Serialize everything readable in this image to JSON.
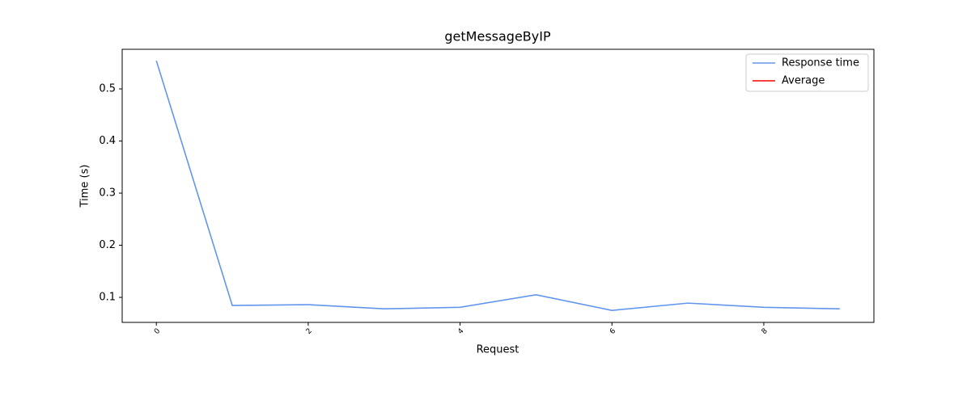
{
  "chart_data": {
    "type": "line",
    "title": "getMessageByIP",
    "x_label": "Request",
    "y_label": "Time (s)",
    "x": [
      0,
      1,
      2,
      3,
      4,
      5,
      6,
      7,
      8,
      9
    ],
    "series": [
      {
        "name": "Response time",
        "color": "#6495ed",
        "values": [
          0.554,
          0.0845,
          0.086,
          0.078,
          0.081,
          0.105,
          0.075,
          0.089,
          0.081,
          0.078
        ]
      },
      {
        "name": "Average",
        "color": "#ff0000",
        "values": [
          null,
          null,
          null,
          null,
          null,
          null,
          null,
          null,
          null,
          null
        ]
      }
    ],
    "xlim": [
      -0.45,
      9.45
    ],
    "xticks": [
      0,
      2,
      4,
      6,
      8
    ],
    "ylim": [
      0.052,
      0.576
    ],
    "yticks": [
      0.1,
      0.2,
      0.3,
      0.4,
      0.5
    ],
    "legend": "upper right",
    "grid": false
  }
}
